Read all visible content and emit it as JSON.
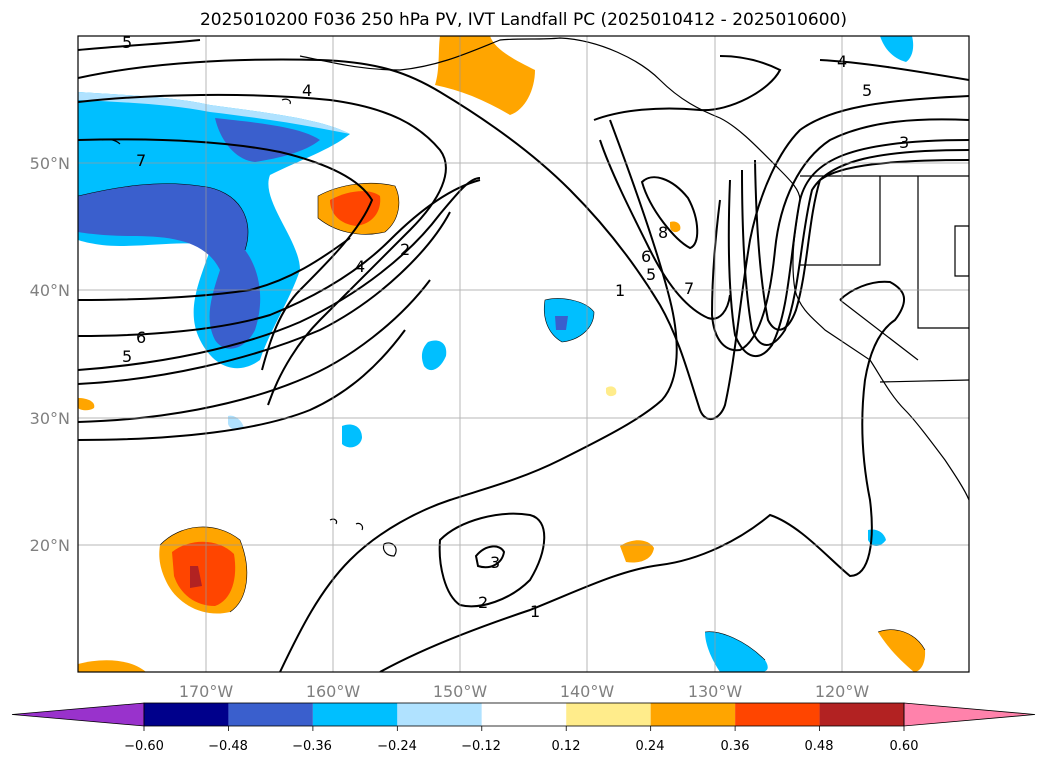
{
  "title": "2025010200 F036 250 hPa PV, IVT Landfall PC (2025010412 - 2025010600)",
  "lon_labels": [
    "170°W",
    "160°W",
    "150°W",
    "140°W",
    "130°W",
    "120°W"
  ],
  "lat_labels": [
    "50°N",
    "40°N",
    "30°N",
    "20°N"
  ],
  "colorbar": {
    "ticks": [
      "−0.60",
      "−0.48",
      "−0.36",
      "−0.24",
      "−0.12",
      "0.12",
      "0.24",
      "0.36",
      "0.48",
      "0.60"
    ],
    "colors": [
      "#9932cc",
      "#00008b",
      "#3a5fcd",
      "#00bfff",
      "#b0e2ff",
      "#ffffff",
      "#ffec8b",
      "#ffa500",
      "#ff4500",
      "#b22222",
      "#ff82ab"
    ]
  },
  "contour_labels": {
    "c5_top": "5",
    "c4_top": "4",
    "c5_ne": "5",
    "c4_ne": "4",
    "c3_ne": "3",
    "c7_w": "7",
    "c6_w": "6",
    "c5_w": "5",
    "c4_w": "4",
    "c2_w": "2",
    "c8_mid": "8",
    "c6_mid": "6",
    "c5_mid": "5",
    "c7_mid": "7",
    "c1_mid": "1",
    "c3_s": "3",
    "c2_s": "2",
    "c1_s": "1"
  }
}
